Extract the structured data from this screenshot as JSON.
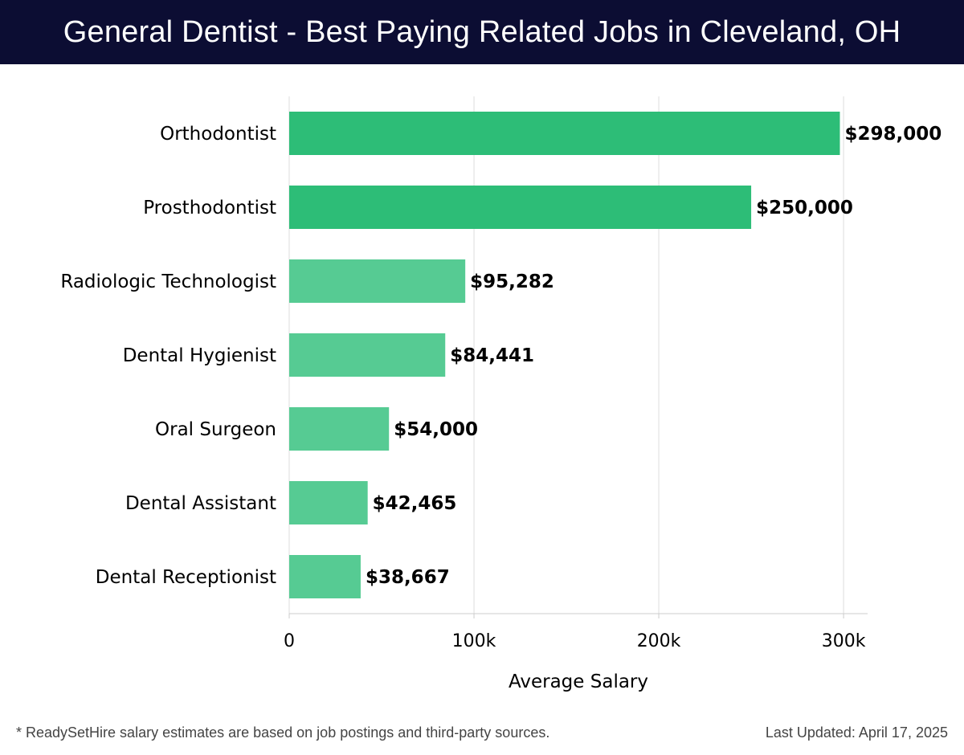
{
  "page": {
    "footnote": "* ReadySetHire salary estimates are based on job postings and third-party sources.",
    "last_updated": "Last Updated: April 17, 2025"
  },
  "colors": {
    "header_bg": "#0c0d33",
    "bar_top": "#2dbd77",
    "bar_other": "#56cb93",
    "grid": "#dddddd"
  },
  "chart_data": {
    "type": "bar",
    "orientation": "horizontal",
    "title": "General Dentist - Best Paying Related Jobs in Cleveland, OH",
    "xlabel": "Average Salary",
    "ylabel": "",
    "categories": [
      "Orthodontist",
      "Prosthodontist",
      "Radiologic Technologist",
      "Dental Hygienist",
      "Oral Surgeon",
      "Dental Assistant",
      "Dental Receptionist"
    ],
    "values": [
      298000,
      250000,
      95282,
      84441,
      54000,
      42465,
      38667
    ],
    "value_labels": [
      "$298,000",
      "$250,000",
      "$95,282",
      "$84,441",
      "$54,000",
      "$42,465",
      "$38,667"
    ],
    "xlim": [
      0,
      313000
    ],
    "ticks": [
      0,
      100000,
      200000,
      300000
    ],
    "tick_labels": [
      "0",
      "100k",
      "200k",
      "300k"
    ],
    "grid": true
  }
}
